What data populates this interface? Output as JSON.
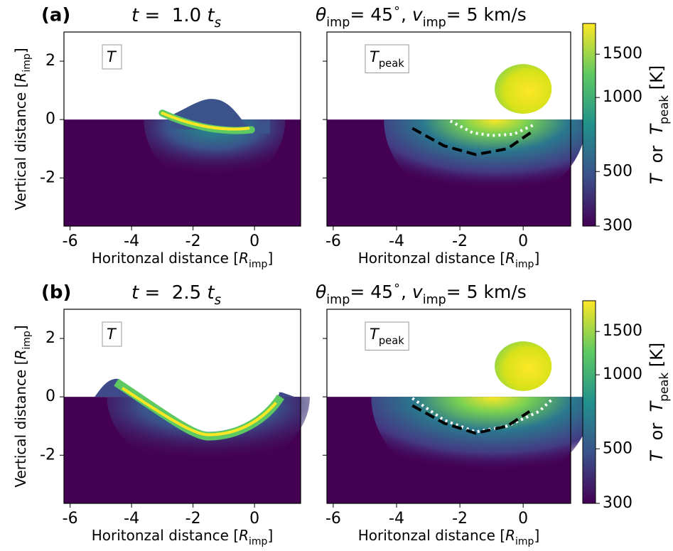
{
  "chart_data": [
    {
      "type": "heatmap",
      "panel_label": "(a)",
      "title": [
        "t",
        " =  1.0 ",
        "t",
        "s"
      ],
      "field_label": [
        "T"
      ],
      "xlabel": [
        "Horitonzal distance [",
        "R",
        "imp",
        "]"
      ],
      "ylabel": [
        "Vertical distance [",
        "R",
        "imp",
        "]"
      ],
      "xlim": [
        -6.2,
        1.5
      ],
      "ylim": [
        -3.65,
        3
      ],
      "xticks": [
        -6,
        -4,
        -2,
        0
      ],
      "yticks": [
        -2,
        0,
        2
      ]
    },
    {
      "type": "heatmap",
      "title": [
        "θ",
        "imp",
        "= 45",
        "∘",
        ", ",
        "v",
        "imp",
        "= 5 km/s"
      ],
      "field_label": [
        "T",
        "peak"
      ],
      "xlabel": [
        "Horitonzal distance [",
        "R",
        "imp",
        "]"
      ],
      "xlim": [
        -6.2,
        1.5
      ],
      "ylim": [
        -3.65,
        3
      ],
      "xticks": [
        -6,
        -4,
        -2,
        0
      ],
      "yticks": [
        -2,
        0,
        2
      ],
      "series": [
        {
          "color": "#ffffff",
          "style": "dotted",
          "x": [
            -2.3,
            -1.6,
            -1.0,
            -0.3,
            0.3
          ],
          "y": [
            -0.05,
            -0.45,
            -0.55,
            -0.5,
            -0.2
          ]
        },
        {
          "color": "#000000",
          "style": "dashed",
          "x": [
            -3.5,
            -2.5,
            -1.5,
            -0.5,
            0.3
          ],
          "y": [
            -0.3,
            -0.9,
            -1.2,
            -1.0,
            -0.4
          ]
        }
      ]
    },
    {
      "type": "colorbar",
      "label": [
        "T",
        "  or  ",
        "T",
        "peak",
        " [K]"
      ],
      "log": true,
      "clim": [
        300,
        2000
      ],
      "ticks": [
        300,
        500,
        1000,
        1500
      ]
    },
    {
      "type": "heatmap",
      "panel_label": "(b)",
      "title": [
        "t",
        " =  2.5 ",
        "t",
        "s"
      ],
      "field_label": [
        "T"
      ],
      "xlabel": [
        "Horitonzal distance [",
        "R",
        "imp",
        "]"
      ],
      "ylabel": [
        "Vertical distance [",
        "R",
        "imp",
        "]"
      ],
      "xlim": [
        -6.2,
        1.5
      ],
      "ylim": [
        -3.65,
        3
      ],
      "xticks": [
        -6,
        -4,
        -2,
        0
      ],
      "yticks": [
        -2,
        0,
        2
      ]
    },
    {
      "type": "heatmap",
      "title": [
        "θ",
        "imp",
        "= 45",
        "∘",
        ", ",
        "v",
        "imp",
        "= 5 km/s"
      ],
      "field_label": [
        "T",
        "peak"
      ],
      "xlabel": [
        "Horitonzal distance [",
        "R",
        "imp",
        "]"
      ],
      "xlim": [
        -6.2,
        1.5
      ],
      "ylim": [
        -3.65,
        3
      ],
      "xticks": [
        -6,
        -4,
        -2,
        0
      ],
      "yticks": [
        -2,
        0,
        2
      ],
      "series": [
        {
          "color": "#ffffff",
          "style": "dotted",
          "x": [
            -3.5,
            -2.5,
            -1.5,
            -0.5,
            0.5,
            0.9
          ],
          "y": [
            -0.05,
            -0.8,
            -1.2,
            -1.0,
            -0.5,
            -0.1
          ]
        },
        {
          "color": "#000000",
          "style": "dashed",
          "x": [
            -3.5,
            -2.5,
            -1.5,
            -0.5,
            0.2
          ],
          "y": [
            -0.3,
            -0.9,
            -1.25,
            -1.0,
            -0.5
          ]
        }
      ]
    },
    {
      "type": "colorbar",
      "label": [
        "T",
        "  or  ",
        "T",
        "peak",
        " [K]"
      ],
      "log": true,
      "clim": [
        300,
        2000
      ],
      "ticks": [
        300,
        500,
        1000,
        1500
      ]
    }
  ]
}
